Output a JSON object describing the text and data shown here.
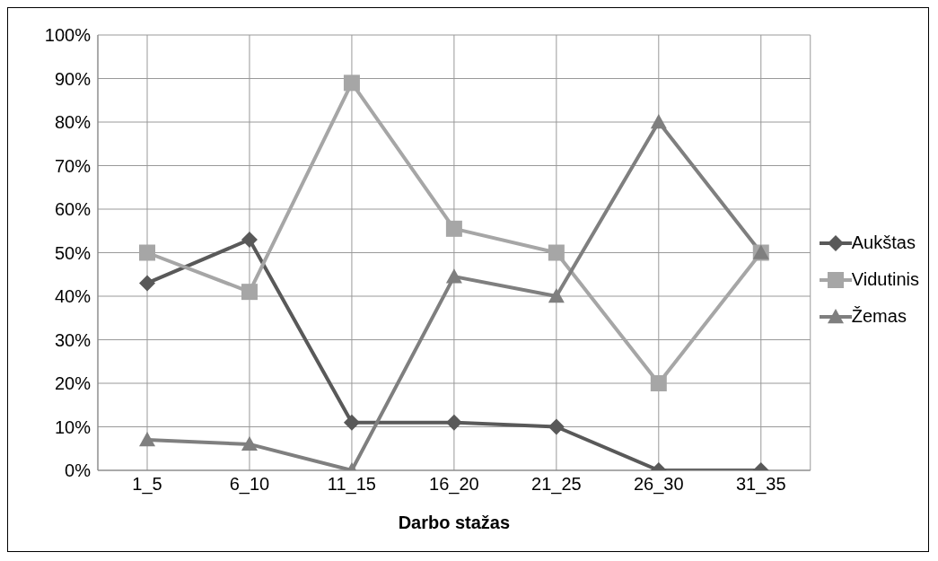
{
  "chart_data": {
    "type": "line",
    "xlabel": "Darbo stažas",
    "categories": [
      "1_5",
      "6_10",
      "11_15",
      "16_20",
      "21_25",
      "26_30",
      "31_35"
    ],
    "series": [
      {
        "name": "Aukštas",
        "color": "#595959",
        "marker": "diamond",
        "values": [
          43,
          53,
          11,
          11,
          10,
          0,
          0
        ]
      },
      {
        "name": "Vidutinis",
        "color": "#a6a6a6",
        "marker": "square",
        "values": [
          50,
          41,
          89,
          55.5,
          50,
          20,
          50
        ]
      },
      {
        "name": "Žemas",
        "color": "#7f7f7f",
        "marker": "triangle",
        "values": [
          7,
          6,
          0,
          44.5,
          40,
          80,
          50
        ]
      }
    ],
    "ylim": [
      0,
      100
    ],
    "yticks": [
      {
        "value": 0,
        "label": "0%"
      },
      {
        "value": 10,
        "label": "10%"
      },
      {
        "value": 20,
        "label": "20%"
      },
      {
        "value": 30,
        "label": "30%"
      },
      {
        "value": 40,
        "label": "40%"
      },
      {
        "value": 50,
        "label": "50%"
      },
      {
        "value": 60,
        "label": "60%"
      },
      {
        "value": 70,
        "label": "70%"
      },
      {
        "value": 80,
        "label": "80%"
      },
      {
        "value": 90,
        "label": "90%"
      },
      {
        "value": 100,
        "label": "100%"
      }
    ],
    "grid": true,
    "legend": "right",
    "line_style": "solid"
  }
}
